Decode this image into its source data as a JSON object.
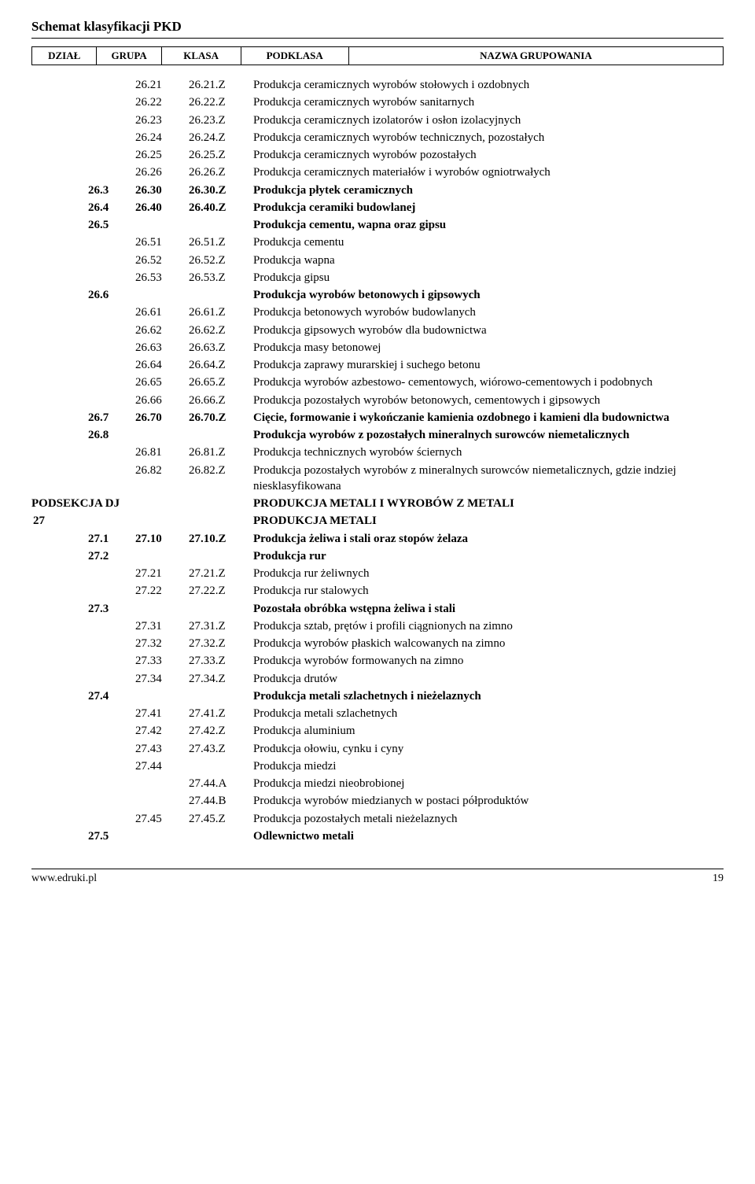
{
  "title": "Schemat klasyfikacji   PKD",
  "headers": {
    "dzial": "DZIAŁ",
    "grupa": "GRUPA",
    "klasa": "KLASA",
    "podklasa": "PODKLASA",
    "nazwa": "NAZWA  GRUPOWANIA"
  },
  "rows": [
    {
      "d": "",
      "g": "",
      "k": "26.21",
      "p": "26.21.Z",
      "n": "Produkcja ceramicznych wyrobów stołowych i ozdobnych",
      "b": false
    },
    {
      "d": "",
      "g": "",
      "k": "26.22",
      "p": "26.22.Z",
      "n": "Produkcja ceramicznych wyrobów sanitarnych",
      "b": false
    },
    {
      "d": "",
      "g": "",
      "k": "26.23",
      "p": "26.23.Z",
      "n": "Produkcja ceramicznych izolatorów i osłon izolacyjnych",
      "b": false
    },
    {
      "d": "",
      "g": "",
      "k": "26.24",
      "p": "26.24.Z",
      "n": "Produkcja ceramicznych wyrobów technicznych, pozostałych",
      "b": false
    },
    {
      "d": "",
      "g": "",
      "k": "26.25",
      "p": "26.25.Z",
      "n": "Produkcja ceramicznych wyrobów pozostałych",
      "b": false
    },
    {
      "d": "",
      "g": "",
      "k": "26.26",
      "p": "26.26.Z",
      "n": "Produkcja ceramicznych materiałów i wyrobów ogniotrwałych",
      "b": false
    },
    {
      "d": "",
      "g": "26.3",
      "k": "26.30",
      "p": "26.30.Z",
      "n": "Produkcja płytek ceramicznych",
      "b": true
    },
    {
      "d": "",
      "g": "26.4",
      "k": "26.40",
      "p": "26.40.Z",
      "n": "Produkcja ceramiki budowlanej",
      "b": true
    },
    {
      "d": "",
      "g": "26.5",
      "k": "",
      "p": "",
      "n": "Produkcja cementu, wapna oraz gipsu",
      "b": true
    },
    {
      "d": "",
      "g": "",
      "k": "26.51",
      "p": "26.51.Z",
      "n": "Produkcja cementu",
      "b": false
    },
    {
      "d": "",
      "g": "",
      "k": "26.52",
      "p": "26.52.Z",
      "n": "Produkcja wapna",
      "b": false
    },
    {
      "d": "",
      "g": "",
      "k": "26.53",
      "p": "26.53.Z",
      "n": "Produkcja gipsu",
      "b": false
    },
    {
      "d": "",
      "g": "26.6",
      "k": "",
      "p": "",
      "n": "Produkcja wyrobów betonowych i gipsowych",
      "b": true
    },
    {
      "d": "",
      "g": "",
      "k": "26.61",
      "p": "26.61.Z",
      "n": "Produkcja betonowych wyrobów budowlanych",
      "b": false
    },
    {
      "d": "",
      "g": "",
      "k": "26.62",
      "p": "26.62.Z",
      "n": "Produkcja gipsowych wyrobów dla budownictwa",
      "b": false
    },
    {
      "d": "",
      "g": "",
      "k": "26.63",
      "p": "26.63.Z",
      "n": "Produkcja masy betonowej",
      "b": false
    },
    {
      "d": "",
      "g": "",
      "k": "26.64",
      "p": "26.64.Z",
      "n": "Produkcja zaprawy murarskiej i suchego betonu",
      "b": false
    },
    {
      "d": "",
      "g": "",
      "k": "26.65",
      "p": "26.65.Z",
      "n": "Produkcja wyrobów azbestowo- cementowych, wiórowo-cementowych i podobnych",
      "b": false
    },
    {
      "d": "",
      "g": "",
      "k": "26.66",
      "p": "26.66.Z",
      "n": "Produkcja pozostałych wyrobów betonowych, cementowych i gipsowych",
      "b": false
    },
    {
      "d": "",
      "g": "26.7",
      "k": "26.70",
      "p": "26.70.Z",
      "n": "Cięcie, formowanie i wykończanie kamienia ozdobnego i kamieni dla budownictwa",
      "b": true
    },
    {
      "d": "",
      "g": "26.8",
      "k": "",
      "p": "",
      "n": "Produkcja wyrobów z pozostałych mineralnych surowców niemetalicznych",
      "b": true
    },
    {
      "d": "",
      "g": "",
      "k": "26.81",
      "p": "26.81.Z",
      "n": "Produkcja technicznych wyrobów ściernych",
      "b": false
    },
    {
      "d": "",
      "g": "",
      "k": "26.82",
      "p": "26.82.Z",
      "n": "Produkcja pozostałych wyrobów z mineralnych surowców niemetalicznych, gdzie indziej niesklasyfikowana",
      "b": false
    },
    {
      "d": "PODSEKCJA DJ",
      "g": "",
      "k": "",
      "p": "",
      "n": "PRODUKCJA METALI I WYROBÓW Z METALI",
      "b": true
    },
    {
      "d": "27",
      "g": "",
      "k": "",
      "p": "",
      "n": "PRODUKCJA METALI",
      "b": true
    },
    {
      "d": "",
      "g": "27.1",
      "k": "27.10",
      "p": "27.10.Z",
      "n": "Produkcja żeliwa i stali oraz stopów żelaza",
      "b": true
    },
    {
      "d": "",
      "g": "27.2",
      "k": "",
      "p": "",
      "n": "Produkcja rur",
      "b": true
    },
    {
      "d": "",
      "g": "",
      "k": "27.21",
      "p": "27.21.Z",
      "n": "Produkcja rur żeliwnych",
      "b": false
    },
    {
      "d": "",
      "g": "",
      "k": "27.22",
      "p": "27.22.Z",
      "n": "Produkcja rur stalowych",
      "b": false
    },
    {
      "d": "",
      "g": "27.3",
      "k": "",
      "p": "",
      "n": "Pozostała obróbka wstępna żeliwa i stali",
      "b": true
    },
    {
      "d": "",
      "g": "",
      "k": "27.31",
      "p": "27.31.Z",
      "n": "Produkcja sztab, prętów i profili  ciągnionych na zimno",
      "b": false
    },
    {
      "d": "",
      "g": "",
      "k": "27.32",
      "p": "27.32.Z",
      "n": "Produkcja wyrobów płaskich walcowanych na zimno",
      "b": false
    },
    {
      "d": "",
      "g": "",
      "k": "27.33",
      "p": "27.33.Z",
      "n": "Produkcja wyrobów formowanych na zimno",
      "b": false
    },
    {
      "d": "",
      "g": "",
      "k": "27.34",
      "p": "27.34.Z",
      "n": "Produkcja drutów",
      "b": false
    },
    {
      "d": "",
      "g": "27.4",
      "k": "",
      "p": "",
      "n": "Produkcja metali szlachetnych i nieżelaznych",
      "b": true
    },
    {
      "d": "",
      "g": "",
      "k": "27.41",
      "p": "27.41.Z",
      "n": "Produkcja metali szlachetnych",
      "b": false
    },
    {
      "d": "",
      "g": "",
      "k": "27.42",
      "p": "27.42.Z",
      "n": "Produkcja aluminium",
      "b": false
    },
    {
      "d": "",
      "g": "",
      "k": "27.43",
      "p": "27.43.Z",
      "n": "Produkcja ołowiu, cynku i cyny",
      "b": false
    },
    {
      "d": "",
      "g": "",
      "k": "27.44",
      "p": "",
      "n": "Produkcja miedzi",
      "b": false
    },
    {
      "d": "",
      "g": "",
      "k": "",
      "p": "27.44.A",
      "n": "Produkcja miedzi nieobrobionej",
      "b": false
    },
    {
      "d": "",
      "g": "",
      "k": "",
      "p": "27.44.B",
      "n": "Produkcja wyrobów miedzianych w postaci półproduktów",
      "b": false
    },
    {
      "d": "",
      "g": "",
      "k": "27.45",
      "p": "27.45.Z",
      "n": "Produkcja pozostałych metali nieżelaznych",
      "b": false
    },
    {
      "d": "",
      "g": "27.5",
      "k": "",
      "p": "",
      "n": "Odlewnictwo metali",
      "b": true
    }
  ],
  "footer": {
    "url": "www.edruki.pl",
    "page": "19"
  }
}
